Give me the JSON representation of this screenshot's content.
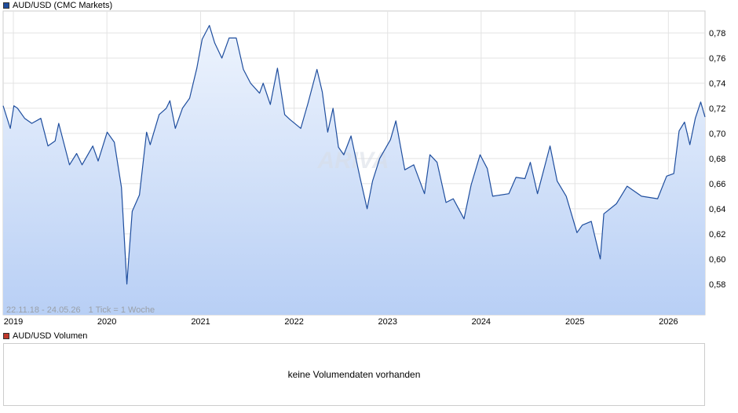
{
  "price_legend": {
    "label": "AUD/USD (CMC Markets)",
    "color": "#1f4e9e"
  },
  "volume_legend": {
    "label": "AUD/USD Volumen",
    "color": "#c0392b"
  },
  "volume_panel": {
    "message": "keine Volumendaten vorhanden"
  },
  "chart_info": {
    "range": "22.11.18 - 24.05.26",
    "tick": "1 Tick = 1 Woche"
  },
  "watermark": "ARIVA",
  "chart_data": {
    "type": "area",
    "title": "AUD/USD (CMC Markets)",
    "x_tick_labels": [
      "2019",
      "2020",
      "2021",
      "2022",
      "2023",
      "2024",
      "2025",
      "2026"
    ],
    "y_tick_labels": [
      "0,78",
      "0,76",
      "0,74",
      "0,72",
      "0,70",
      "0,68",
      "0,66",
      "0,64",
      "0,62",
      "0,60",
      "0,58"
    ],
    "y_ticks": [
      0.78,
      0.76,
      0.74,
      0.72,
      0.7,
      0.68,
      0.66,
      0.64,
      0.62,
      0.6,
      0.58
    ],
    "ylim": [
      0.5555,
      0.7975
    ],
    "xlim": [
      "2018-11-22",
      "2026-05-24"
    ],
    "grid": true,
    "line_color": "#1f4e9e",
    "fill_top": "#eef4fd",
    "fill_bottom": "#b8cff5",
    "series": [
      {
        "x": [
          "2018-11-22",
          "2018-12-20",
          "2019-01-03",
          "2019-01-17",
          "2019-02-14",
          "2019-03-14",
          "2019-04-18",
          "2019-05-16",
          "2019-06-13",
          "2019-06-27",
          "2019-08-08",
          "2019-09-05",
          "2019-09-26",
          "2019-11-07",
          "2019-11-28",
          "2020-01-02",
          "2020-01-30",
          "2020-02-27",
          "2020-03-19",
          "2020-03-26",
          "2020-04-09",
          "2020-05-07",
          "2020-06-04",
          "2020-06-18",
          "2020-07-23",
          "2020-08-20",
          "2020-09-03",
          "2020-09-24",
          "2020-10-22",
          "2020-11-19",
          "2020-12-17",
          "2021-01-07",
          "2021-02-04",
          "2021-02-25",
          "2021-03-25",
          "2021-04-22",
          "2021-05-20",
          "2021-06-17",
          "2021-07-15",
          "2021-08-19",
          "2021-09-02",
          "2021-09-30",
          "2021-10-28",
          "2021-11-25",
          "2021-12-16",
          "2022-01-27",
          "2022-02-24",
          "2022-03-31",
          "2022-04-21",
          "2022-05-12",
          "2022-06-02",
          "2022-06-23",
          "2022-07-14",
          "2022-08-11",
          "2022-09-15",
          "2022-10-13",
          "2022-11-03",
          "2022-12-01",
          "2023-01-12",
          "2023-02-02",
          "2023-03-09",
          "2023-04-13",
          "2023-05-25",
          "2023-06-15",
          "2023-07-13",
          "2023-08-17",
          "2023-09-14",
          "2023-10-26",
          "2023-11-23",
          "2023-12-28",
          "2024-01-25",
          "2024-02-15",
          "2024-04-18",
          "2024-05-16",
          "2024-06-20",
          "2024-07-11",
          "2024-08-08",
          "2024-09-26",
          "2024-10-24",
          "2024-11-28",
          "2025-01-09",
          "2025-01-30",
          "2025-03-06",
          "2025-04-10",
          "2025-04-24",
          "2025-06-12",
          "2025-07-24",
          "2025-09-18",
          "2025-11-20",
          "2025-12-25",
          "2026-01-22",
          "2026-02-12",
          "2026-03-05",
          "2026-03-26",
          "2026-04-16",
          "2026-05-07",
          "2026-05-24"
        ],
        "y": [
          0.722,
          0.704,
          0.722,
          0.72,
          0.712,
          0.708,
          0.712,
          0.69,
          0.694,
          0.708,
          0.675,
          0.684,
          0.675,
          0.69,
          0.678,
          0.701,
          0.693,
          0.657,
          0.58,
          0.6,
          0.638,
          0.651,
          0.701,
          0.691,
          0.715,
          0.72,
          0.726,
          0.704,
          0.72,
          0.728,
          0.752,
          0.775,
          0.786,
          0.772,
          0.76,
          0.776,
          0.776,
          0.751,
          0.74,
          0.732,
          0.74,
          0.723,
          0.752,
          0.715,
          0.711,
          0.704,
          0.724,
          0.751,
          0.733,
          0.701,
          0.72,
          0.689,
          0.683,
          0.698,
          0.665,
          0.64,
          0.662,
          0.68,
          0.695,
          0.71,
          0.671,
          0.675,
          0.652,
          0.683,
          0.677,
          0.645,
          0.648,
          0.632,
          0.659,
          0.683,
          0.672,
          0.65,
          0.652,
          0.665,
          0.664,
          0.677,
          0.652,
          0.69,
          0.662,
          0.65,
          0.621,
          0.627,
          0.63,
          0.6,
          0.636,
          0.644,
          0.658,
          0.65,
          0.648,
          0.666,
          0.668,
          0.702,
          0.709,
          0.691,
          0.712,
          0.725,
          0.713
        ]
      }
    ]
  }
}
